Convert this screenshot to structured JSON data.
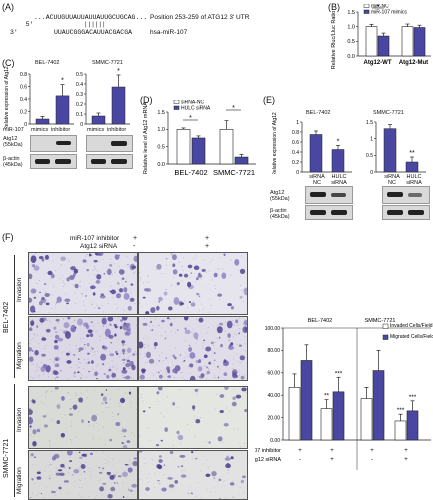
{
  "panels": {
    "A": {
      "label": "(A)",
      "line1_prefix": "5'",
      "line1_seq": "...ACUUGUUAUUAUUAUUGCUGCAG...",
      "line1_note": "Position 253-259 of ATG12 3' UTR",
      "pairs": "||||||",
      "line2_prefix": "3'",
      "line2_seq": "UUAUCGGGACAUUACGACGA",
      "line2_note": "hsa-miR-107"
    },
    "B": {
      "label": "(B)",
      "ylabel": "Relative Rluc/Lluc Ratio",
      "legend": [
        "miR-NC",
        "miR-107 mimics"
      ],
      "groups": [
        "Atg12-WT",
        "Atg12-Mut"
      ],
      "ticks": [
        "0.0",
        "0.5",
        "1.0",
        "1.5"
      ],
      "sig": "*"
    },
    "C": {
      "label": "(C)",
      "cells": [
        "BEL-7402",
        "SMMC-7721"
      ],
      "ylabel": "Relative expression of Atg12",
      "ticks_left": [
        "0",
        "0.2",
        "0.4",
        "0.6",
        "0.8"
      ],
      "ticks_right": [
        "0",
        "0.1",
        "0.2",
        "0.3",
        "0.4",
        "0.5"
      ],
      "row_label": "miR-107",
      "conds": [
        "mimics",
        "inhibitor",
        "mimics",
        "inhibitor"
      ],
      "sig": "*",
      "wb1": "Atg12",
      "wb1_kda": "(55kDa)",
      "wb2": "β-actin",
      "wb2_kda": "(45kDa)"
    },
    "D": {
      "label": "(D)",
      "ylabel": "Relative level of Atg12 mRNA",
      "legend": [
        "siRNA-NC",
        "HULC siRNA"
      ],
      "cells": [
        "BEL-7402",
        "SMMC-7721"
      ],
      "ticks": [
        "0.0",
        "0.5",
        "1.0",
        "1.5"
      ],
      "sig": "*"
    },
    "E": {
      "label": "(E)",
      "cells": [
        "BEL-7402",
        "SMMC-7721"
      ],
      "ylabel": "Relative expression of Atg12",
      "ticks_left": [
        "0",
        "0.2",
        "0.4",
        "0.6",
        "0.8",
        "1"
      ],
      "ticks_right": [
        "0",
        "0.5",
        "1",
        "1.5"
      ],
      "conds": [
        "siRNA NC",
        "HULC siRNA",
        "siRNA NC",
        "HULC siRNA"
      ],
      "sig1": "*",
      "sig2": "**",
      "wb1": "Atg12",
      "wb1_kda": "(55kDa)",
      "wb2": "β-actin",
      "wb2_kda": "(45kDa)"
    },
    "F": {
      "label": "(F)",
      "treat1": "miR-107 inhibitor",
      "treat2": "Atg12 siRNA",
      "col1": [
        "+",
        "-"
      ],
      "col2": [
        "+",
        "+"
      ],
      "cells": [
        "BEL-7402",
        "SMMC-7721"
      ],
      "rows": [
        "Invasion",
        "Migration",
        "Invasion",
        "Migration"
      ]
    },
    "G": {
      "cells": [
        "BEL-7402",
        "SMMC-7721"
      ],
      "ticks": [
        "0.00",
        "20.00",
        "40.00",
        "60.00",
        "80.00",
        "100.00"
      ],
      "legend": [
        "Invaded Cells/Field",
        "Migrated Cells/Field"
      ],
      "row1": "miR-107 inhibitor",
      "row2": "Atg12 siRNA",
      "r1": [
        "+",
        "+",
        "+",
        "+"
      ],
      "r2": [
        "-",
        "+",
        "-",
        "+"
      ],
      "sig2": "**",
      "sig3": "***"
    }
  },
  "chart_data": [
    {
      "type": "bar",
      "title": "",
      "categories": [
        "Atg12-WT",
        "Atg12-Mut"
      ],
      "series": [
        {
          "name": "miR-NC",
          "values": [
            1.0,
            1.0
          ],
          "err": [
            0.08,
            0.09
          ]
        },
        {
          "name": "miR-107 mimics",
          "values": [
            0.68,
            0.97
          ],
          "err": [
            0.1,
            0.08
          ]
        }
      ],
      "ylabel": "Relative Rluc/Lluc Ratio",
      "ylim": [
        0,
        1.5
      ],
      "legend": "top-left"
    },
    {
      "type": "bar",
      "title": "BEL-7402",
      "categories": [
        "mimics",
        "inhibitor"
      ],
      "values": [
        0.08,
        0.45
      ],
      "err": [
        0.04,
        0.18
      ],
      "ylabel": "Relative expression of Atg12",
      "ylim": [
        0,
        0.8
      ]
    },
    {
      "type": "bar",
      "title": "SMMC-7721",
      "categories": [
        "mimics",
        "inhibitor"
      ],
      "values": [
        0.08,
        0.37
      ],
      "err": [
        0.03,
        0.12
      ],
      "ylim": [
        0,
        0.5
      ]
    },
    {
      "type": "bar",
      "title": "",
      "categories": [
        "BEL-7402",
        "SMMC-7721"
      ],
      "series": [
        {
          "name": "siRNA-NC",
          "values": [
            1.0,
            1.0
          ],
          "err": [
            0.04,
            0.25
          ]
        },
        {
          "name": "HULC siRNA",
          "values": [
            0.75,
            0.2
          ],
          "err": [
            0.06,
            0.08
          ]
        }
      ],
      "ylabel": "Relative level of Atg12 mRNA",
      "ylim": [
        0,
        1.5
      ],
      "legend": "top-left"
    },
    {
      "type": "bar",
      "title": "BEL-7402",
      "categories": [
        "siRNA NC",
        "HULC siRNA"
      ],
      "values": [
        0.75,
        0.45
      ],
      "err": [
        0.07,
        0.08
      ],
      "ylabel": "Relative expression of Atg12",
      "ylim": [
        0,
        1
      ]
    },
    {
      "type": "bar",
      "title": "SMMC-7721",
      "categories": [
        "siRNA NC",
        "HULC siRNA"
      ],
      "values": [
        1.3,
        0.3
      ],
      "err": [
        0.12,
        0.15
      ],
      "ylim": [
        0,
        1.5
      ]
    },
    {
      "type": "bar",
      "title": "",
      "categories": [
        "BEL-7402 -",
        "BEL-7402 +",
        "SMMC-7721 -",
        "SMMC-7721 +"
      ],
      "series": [
        {
          "name": "Invaded Cells/Field",
          "values": [
            47,
            28,
            37,
            17
          ],
          "err": [
            12,
            8,
            10,
            6
          ]
        },
        {
          "name": "Migrated Cells/Field",
          "values": [
            71,
            43,
            62,
            26
          ],
          "err": [
            14,
            13,
            18,
            9
          ]
        }
      ],
      "ylim": [
        0,
        100
      ],
      "legend": "top-right"
    }
  ]
}
